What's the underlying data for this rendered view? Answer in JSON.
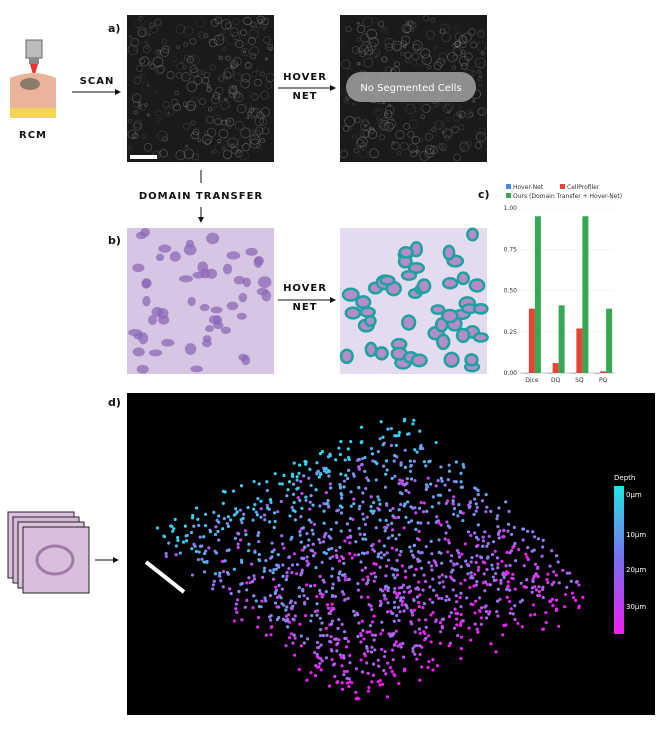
{
  "panel_labels": [
    "a)",
    "b)",
    "c)",
    "d)"
  ],
  "rcm_label": "RCM",
  "scan_label": "SCAN",
  "hover_net_top": [
    "HOVER",
    "NET"
  ],
  "hover_net_bottom": [
    "HOVER",
    "NET"
  ],
  "no_cells_label": "No Segmented Cells",
  "domain_transfer_label": "DOMAIN TRANSFER",
  "depth_bar": {
    "title": "Depth",
    "labels": [
      "0μm",
      "10μm",
      "20μm",
      "30μm"
    ]
  },
  "chart_data": {
    "type": "bar",
    "categories": [
      "Dice",
      "DQ",
      "SQ",
      "PQ"
    ],
    "series": [
      {
        "name": "Hover-Net",
        "color": "#4a86e8",
        "values": [
          0,
          0,
          0,
          0
        ]
      },
      {
        "name": "CellProfiler",
        "color": "#ea4335",
        "values": [
          0.39,
          0.06,
          0.27,
          0.01
        ]
      },
      {
        "name": "Ours (Domain Transfer + Hover-Net)",
        "color": "#34a853",
        "values": [
          0.95,
          0.41,
          0.95,
          0.39
        ]
      }
    ],
    "ylim": [
      0,
      1
    ],
    "yticks": [
      {
        "value": 0,
        "label": "0.00"
      },
      {
        "value": 0.25,
        "label": "0.25"
      },
      {
        "value": 0.5,
        "label": "0.50"
      },
      {
        "value": 0.75,
        "label": "0.75"
      },
      {
        "value": 1,
        "label": "1.00"
      }
    ],
    "grid": true
  }
}
